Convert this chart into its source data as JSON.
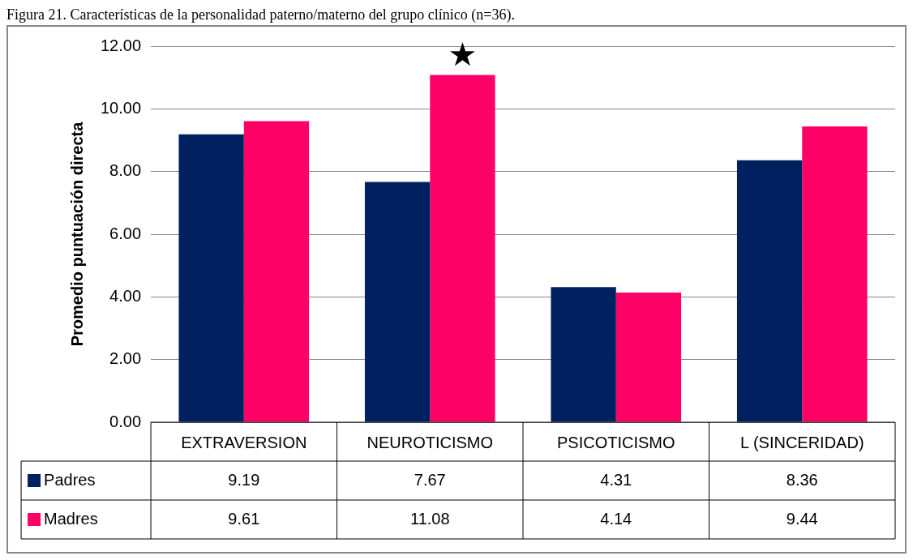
{
  "chart_data": {
    "type": "bar",
    "title": "Figura 21. Características de la personalidad paterno/materno del grupo clínico (n=36).",
    "ylabel": "Promedio puntuación directa",
    "categories": [
      "EXTRAVERSION",
      "NEUROTICISMO",
      "PSICOTICISMO",
      "L (SINCERIDAD)"
    ],
    "series": [
      {
        "name": "Padres",
        "color": "#002060",
        "values": [
          9.19,
          7.67,
          4.31,
          8.36
        ]
      },
      {
        "name": "Madres",
        "color": "#ff0066",
        "values": [
          9.61,
          11.08,
          4.14,
          9.44
        ]
      }
    ],
    "ylim": [
      0,
      12
    ],
    "yticks": [
      {
        "value": 0,
        "label": "0.00"
      },
      {
        "value": 2,
        "label": "2.00"
      },
      {
        "value": 4,
        "label": "4.00"
      },
      {
        "value": 6,
        "label": "6.00"
      },
      {
        "value": 8,
        "label": "8.00"
      },
      {
        "value": 10,
        "label": "10.00"
      },
      {
        "value": 12,
        "label": "12.00"
      }
    ],
    "grid": "y",
    "data_labels": true,
    "legend": "bottom left",
    "annotations": [
      {
        "text": "★",
        "x": "NEUROTICISMO",
        "y": 11.08
      }
    ]
  }
}
